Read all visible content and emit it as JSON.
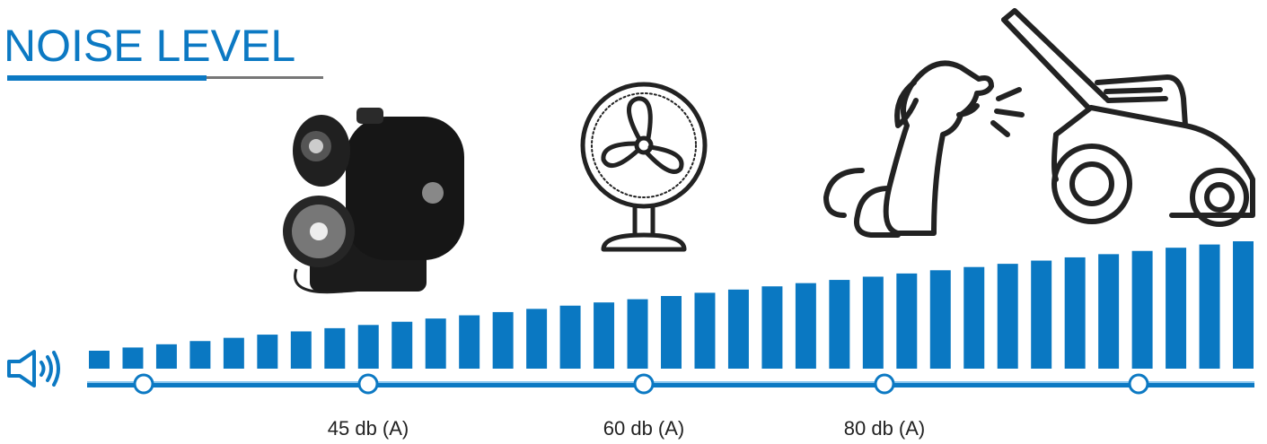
{
  "header": {
    "title": "NOISE LEVEL"
  },
  "scale": {
    "labels": [
      "45 db (A)",
      "60 db (A)",
      "80 db (A)"
    ]
  }
}
